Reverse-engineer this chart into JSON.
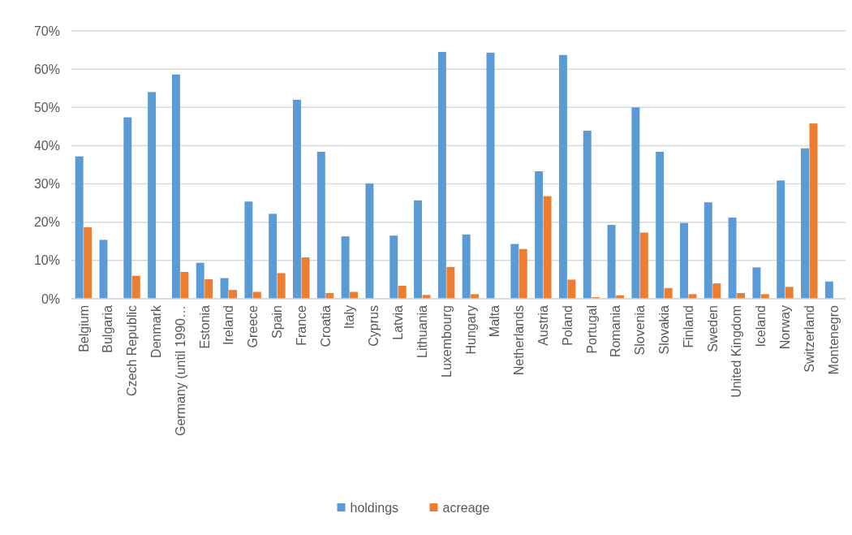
{
  "chart_data": {
    "type": "bar",
    "categories": [
      "Belgium",
      "Bulgaria",
      "Czech Republic",
      "Denmark",
      "Germany (until 1990…",
      "Estonia",
      "Ireland",
      "Greece",
      "Spain",
      "France",
      "Croatia",
      "Italy",
      "Cyprus",
      "Latvia",
      "Lithuania",
      "Luxembourg",
      "Hungary",
      "Malta",
      "Netherlands",
      "Austria",
      "Poland",
      "Portugal",
      "Romania",
      "Slovenia",
      "Slovakia",
      "Finland",
      "Sweden",
      "United Kingdom",
      "Iceland",
      "Norway",
      "Switzerland",
      "Montenegro"
    ],
    "series": [
      {
        "name": "holdings",
        "color": "#5b9bd5",
        "values": [
          37.2,
          15.4,
          47.4,
          54.0,
          58.6,
          9.4,
          5.4,
          25.4,
          22.2,
          52.0,
          38.4,
          16.3,
          30.1,
          16.5,
          25.7,
          64.5,
          16.8,
          64.3,
          14.3,
          33.3,
          63.7,
          43.9,
          19.3,
          50.0,
          38.4,
          19.8,
          25.2,
          21.2,
          8.2,
          30.9,
          39.3,
          4.5
        ]
      },
      {
        "name": "acreage",
        "color": "#ed7d31",
        "values": [
          18.7,
          0,
          6.0,
          0,
          7.0,
          5.1,
          2.3,
          1.8,
          6.7,
          10.8,
          1.5,
          1.8,
          0,
          3.4,
          1.0,
          8.3,
          1.2,
          0,
          13.0,
          26.8,
          5.0,
          0.4,
          0.9,
          17.3,
          2.8,
          1.2,
          4.0,
          1.5,
          1.2,
          3.1,
          45.8,
          0
        ]
      }
    ],
    "ylim": [
      0,
      70
    ],
    "yticks": [
      {
        "value": 0,
        "label": "0%"
      },
      {
        "value": 10,
        "label": "10%"
      },
      {
        "value": 20,
        "label": "20%"
      },
      {
        "value": 30,
        "label": "30%"
      },
      {
        "value": 40,
        "label": "40%"
      },
      {
        "value": 50,
        "label": "50%"
      },
      {
        "value": 60,
        "label": "60%"
      },
      {
        "value": 70,
        "label": "70%"
      }
    ],
    "grid": "y",
    "legend": "bottom"
  }
}
